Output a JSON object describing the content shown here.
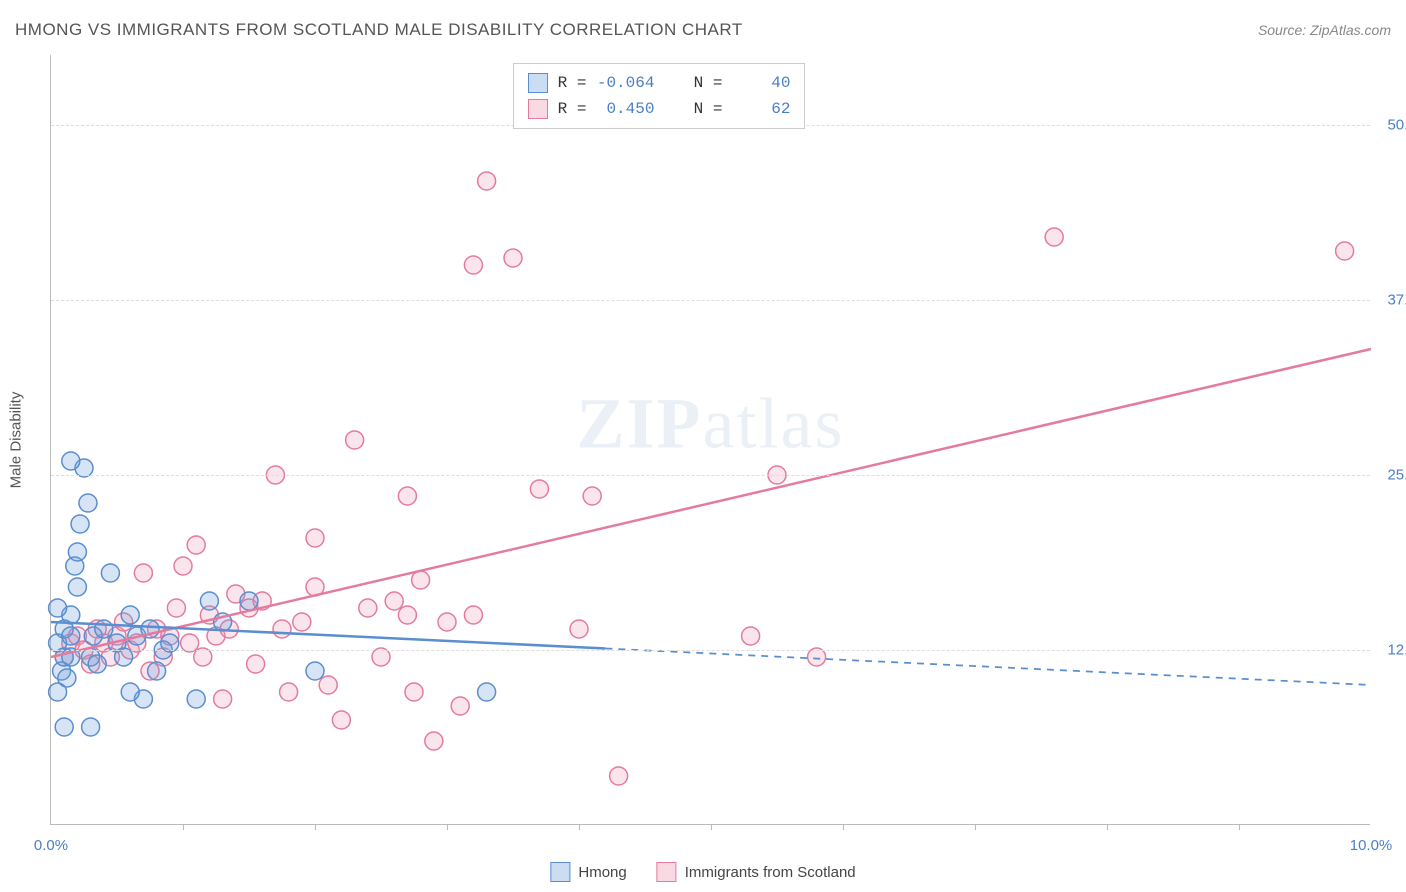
{
  "title": "HMONG VS IMMIGRANTS FROM SCOTLAND MALE DISABILITY CORRELATION CHART",
  "source": "Source: ZipAtlas.com",
  "watermark": "ZIPatlas",
  "y_axis_title": "Male Disability",
  "chart": {
    "type": "scatter",
    "xlim": [
      0,
      10
    ],
    "ylim": [
      0,
      55
    ],
    "x_ticks": [
      0,
      1,
      2,
      3,
      4,
      5,
      6,
      7,
      8,
      9,
      10
    ],
    "x_tick_labels": {
      "0": "0.0%",
      "10": "10.0%"
    },
    "y_gridlines": [
      12.5,
      25.0,
      37.5,
      50.0
    ],
    "y_tick_labels": [
      "12.5%",
      "25.0%",
      "37.5%",
      "50.0%"
    ],
    "background_color": "#ffffff",
    "grid_color": "#dddddd",
    "axis_color": "#bbbbbb",
    "tick_label_color": "#4a7fc5",
    "marker_radius": 9,
    "marker_stroke_width": 1.5,
    "marker_fill_opacity": 0.28
  },
  "series": {
    "hmong": {
      "label": "Hmong",
      "color_stroke": "#5a8ed0",
      "color_fill": "#6b9edc",
      "R": "-0.064",
      "N": "40",
      "trend": {
        "x0": 0,
        "y0": 14.5,
        "x1": 10,
        "y1": 10.0,
        "solid_until_x": 4.2,
        "stroke_width": 2.5
      },
      "points": [
        [
          0.05,
          13
        ],
        [
          0.08,
          11
        ],
        [
          0.1,
          12
        ],
        [
          0.1,
          14
        ],
        [
          0.12,
          10.5
        ],
        [
          0.15,
          15
        ],
        [
          0.15,
          13.5
        ],
        [
          0.15,
          12
        ],
        [
          0.18,
          18.5
        ],
        [
          0.2,
          19.5
        ],
        [
          0.2,
          17
        ],
        [
          0.22,
          21.5
        ],
        [
          0.25,
          25.5
        ],
        [
          0.28,
          23
        ],
        [
          0.15,
          26
        ],
        [
          0.3,
          12
        ],
        [
          0.32,
          13.5
        ],
        [
          0.35,
          11.5
        ],
        [
          0.05,
          9.5
        ],
        [
          0.4,
          14
        ],
        [
          0.45,
          18
        ],
        [
          0.5,
          13
        ],
        [
          0.55,
          12
        ],
        [
          0.6,
          15
        ],
        [
          0.65,
          13.5
        ],
        [
          0.7,
          9
        ],
        [
          0.75,
          14
        ],
        [
          0.85,
          12.5
        ],
        [
          0.9,
          13
        ],
        [
          1.1,
          9
        ],
        [
          1.2,
          16
        ],
        [
          1.3,
          14.5
        ],
        [
          1.5,
          16
        ],
        [
          0.1,
          7
        ],
        [
          0.3,
          7
        ],
        [
          0.6,
          9.5
        ],
        [
          0.8,
          11
        ],
        [
          2.0,
          11
        ],
        [
          3.3,
          9.5
        ],
        [
          0.05,
          15.5
        ]
      ]
    },
    "scotland": {
      "label": "Immigrants from Scotland",
      "color_stroke": "#e57aa0",
      "color_fill": "#f0a0bc",
      "R": "0.450",
      "N": "62",
      "trend": {
        "x0": 0,
        "y0": 12.0,
        "x1": 10,
        "y1": 34.0,
        "solid_until_x": 10,
        "stroke_width": 2.5
      },
      "points": [
        [
          0.1,
          12
        ],
        [
          0.15,
          13
        ],
        [
          0.2,
          13.5
        ],
        [
          0.25,
          12.5
        ],
        [
          0.3,
          11.5
        ],
        [
          0.35,
          14
        ],
        [
          0.4,
          13
        ],
        [
          0.45,
          12
        ],
        [
          0.5,
          13.5
        ],
        [
          0.55,
          14.5
        ],
        [
          0.6,
          12.5
        ],
        [
          0.65,
          13
        ],
        [
          0.7,
          18
        ],
        [
          0.75,
          11
        ],
        [
          0.8,
          14
        ],
        [
          0.85,
          12
        ],
        [
          0.9,
          13.5
        ],
        [
          0.95,
          15.5
        ],
        [
          1.0,
          18.5
        ],
        [
          1.05,
          13
        ],
        [
          1.1,
          20
        ],
        [
          1.15,
          12
        ],
        [
          1.2,
          15
        ],
        [
          1.25,
          13.5
        ],
        [
          1.3,
          9
        ],
        [
          1.35,
          14
        ],
        [
          1.4,
          16.5
        ],
        [
          1.5,
          15.5
        ],
        [
          1.55,
          11.5
        ],
        [
          1.6,
          16
        ],
        [
          1.7,
          25
        ],
        [
          1.75,
          14
        ],
        [
          1.8,
          9.5
        ],
        [
          1.9,
          14.5
        ],
        [
          2.0,
          17
        ],
        [
          2.0,
          20.5
        ],
        [
          2.1,
          10
        ],
        [
          2.2,
          7.5
        ],
        [
          2.3,
          27.5
        ],
        [
          2.4,
          15.5
        ],
        [
          2.5,
          12
        ],
        [
          2.6,
          16
        ],
        [
          2.7,
          23.5
        ],
        [
          2.7,
          15
        ],
        [
          2.75,
          9.5
        ],
        [
          2.8,
          17.5
        ],
        [
          2.9,
          6
        ],
        [
          3.0,
          14.5
        ],
        [
          3.1,
          8.5
        ],
        [
          3.2,
          40
        ],
        [
          3.2,
          15
        ],
        [
          3.3,
          46
        ],
        [
          3.5,
          40.5
        ],
        [
          3.7,
          24
        ],
        [
          4.0,
          14
        ],
        [
          4.1,
          23.5
        ],
        [
          4.3,
          3.5
        ],
        [
          5.3,
          13.5
        ],
        [
          5.5,
          25
        ],
        [
          5.8,
          12
        ],
        [
          7.6,
          42
        ],
        [
          9.8,
          41
        ]
      ]
    }
  },
  "legend_top": {
    "R_label": "R =",
    "N_label": "N ="
  },
  "legend_bottom": [
    {
      "swatch": "blue",
      "label": "Hmong"
    },
    {
      "swatch": "pink",
      "label": "Immigrants from Scotland"
    }
  ]
}
